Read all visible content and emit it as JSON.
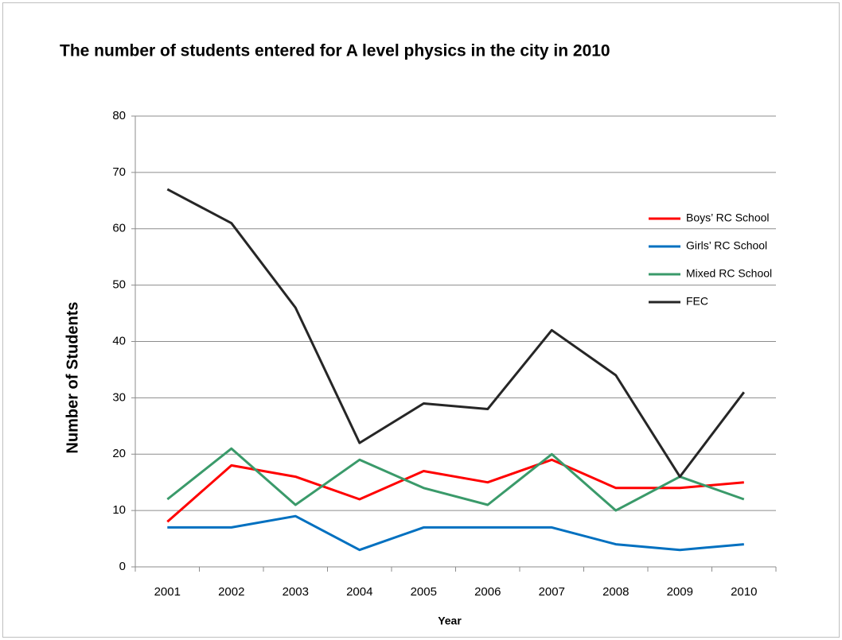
{
  "chart_data": {
    "type": "line",
    "title": "The number of students entered for A level physics in the city in 2010",
    "xlabel": "Year",
    "ylabel": "Number of Students",
    "categories": [
      "2001",
      "2002",
      "2003",
      "2004",
      "2005",
      "2006",
      "2007",
      "2008",
      "2009",
      "2010"
    ],
    "series": [
      {
        "name": "Boys’ RC School",
        "color": "#ff0000",
        "values": [
          8,
          18,
          16,
          12,
          17,
          15,
          19,
          14,
          14,
          15
        ]
      },
      {
        "name": "Girls’ RC School",
        "color": "#0070c0",
        "values": [
          7,
          7,
          9,
          3,
          7,
          7,
          7,
          4,
          3,
          4
        ]
      },
      {
        "name": "Mixed RC  School",
        "color": "#3a9a6a",
        "values": [
          12,
          21,
          11,
          19,
          14,
          11,
          20,
          10,
          16,
          12
        ]
      },
      {
        "name": "FEC",
        "color": "#262626",
        "values": [
          67,
          61,
          46,
          22,
          29,
          28,
          42,
          34,
          16,
          31
        ]
      }
    ],
    "ylim": [
      0,
      80
    ],
    "yticks": [
      0,
      10,
      20,
      30,
      40,
      50,
      60,
      70,
      80
    ],
    "grid": true,
    "legend": "right"
  }
}
